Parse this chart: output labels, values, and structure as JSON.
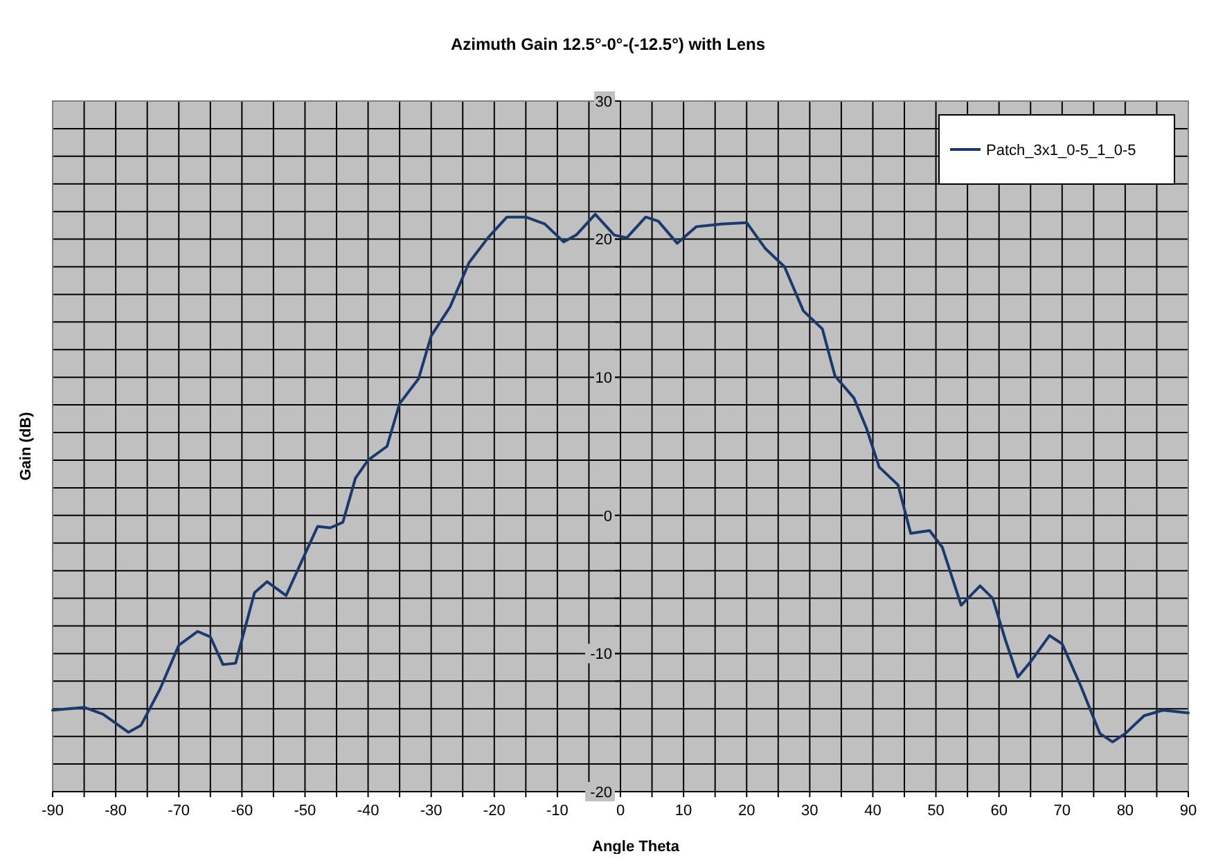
{
  "chart_data": {
    "type": "line",
    "title": "Azimuth Gain 12.5°-0°-(-12.5°) with Lens",
    "xlabel": "Angle Theta",
    "ylabel": "Gain (dB)",
    "xlim": [
      -90,
      90
    ],
    "ylim": [
      -20,
      30
    ],
    "xticks": [
      -90,
      {
        "value": -85,
        "label": null
      },
      -80,
      {
        "value": -75,
        "label": null
      },
      -70,
      {
        "value": -65,
        "label": null
      },
      -60,
      {
        "value": -55,
        "label": null
      },
      -50,
      {
        "value": -45,
        "label": null
      },
      -40,
      {
        "value": -35,
        "label": null
      },
      -30,
      {
        "value": -25,
        "label": null
      },
      -20,
      {
        "value": -15,
        "label": null
      },
      -10,
      {
        "value": -5,
        "label": null
      },
      0,
      {
        "value": 5,
        "label": null
      },
      10,
      {
        "value": 15,
        "label": null
      },
      20,
      {
        "value": 25,
        "label": null
      },
      30,
      {
        "value": 35,
        "label": null
      },
      40,
      {
        "value": 45,
        "label": null
      },
      50,
      {
        "value": 55,
        "label": null
      },
      60,
      {
        "value": 65,
        "label": null
      },
      70,
      {
        "value": 75,
        "label": null
      },
      80,
      {
        "value": 85,
        "label": null
      },
      90
    ],
    "yticks": [
      -20,
      {
        "value": -18,
        "label": null
      },
      {
        "value": -16,
        "label": null
      },
      {
        "value": -14,
        "label": null
      },
      {
        "value": -12,
        "label": null
      },
      -10,
      {
        "value": -8,
        "label": null
      },
      {
        "value": -6,
        "label": null
      },
      {
        "value": -4,
        "label": null
      },
      {
        "value": -2,
        "label": null
      },
      0,
      {
        "value": 2,
        "label": null
      },
      {
        "value": 4,
        "label": null
      },
      {
        "value": 6,
        "label": null
      },
      {
        "value": 8,
        "label": null
      },
      10,
      {
        "value": 12,
        "label": null
      },
      {
        "value": 14,
        "label": null
      },
      {
        "value": 16,
        "label": null
      },
      {
        "value": 18,
        "label": null
      },
      20,
      {
        "value": 22,
        "label": null
      },
      {
        "value": 24,
        "label": null
      },
      {
        "value": 26,
        "label": null
      },
      {
        "value": 28,
        "label": null
      },
      30
    ],
    "grid": true,
    "legend": "top right",
    "line_style": "solid",
    "series": [
      {
        "name": "Patch_3x1_0-5_1_0-5",
        "color": "#1a3a6e",
        "x": [
          -90,
          -85,
          -82,
          -78,
          -76,
          -73,
          -70,
          -67,
          -65,
          -63,
          -61,
          -58,
          -56,
          -53,
          -51,
          -48,
          -46,
          -44,
          -42,
          -40,
          -37,
          -35,
          -32,
          -30,
          -27,
          -24,
          -21,
          -18,
          -15,
          -12,
          -9,
          -7,
          -4,
          -1,
          1,
          4,
          6,
          9,
          12,
          16,
          20,
          23,
          26,
          29,
          32,
          34,
          37,
          39,
          41,
          44,
          46,
          49,
          51,
          54,
          57,
          59,
          61,
          63,
          65,
          68,
          70,
          73,
          76,
          78,
          80,
          83,
          86,
          90
        ],
        "values": [
          -14.1,
          -13.9,
          -14.4,
          -15.7,
          -15.2,
          -12.6,
          -9.4,
          -8.4,
          -8.8,
          -10.8,
          -10.7,
          -5.6,
          -4.8,
          -5.8,
          -3.8,
          -0.8,
          -0.9,
          -0.5,
          2.7,
          4.0,
          5.0,
          8.1,
          9.9,
          13.0,
          15.1,
          18.3,
          20.1,
          21.6,
          21.6,
          21.1,
          19.8,
          20.3,
          21.8,
          20.3,
          20.1,
          21.6,
          21.3,
          19.7,
          20.9,
          21.1,
          21.2,
          19.3,
          18.0,
          14.8,
          13.5,
          10.1,
          8.5,
          6.3,
          3.5,
          2.2,
          -1.3,
          -1.1,
          -2.3,
          -6.5,
          -5.1,
          -6.0,
          -9.0,
          -11.7,
          -10.6,
          -8.7,
          -9.3,
          -12.4,
          -15.8,
          -16.4,
          -15.8,
          -14.5,
          -14.1,
          -14.3
        ]
      }
    ]
  }
}
